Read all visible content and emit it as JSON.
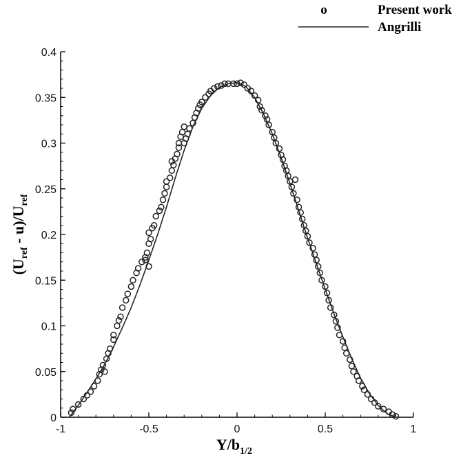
{
  "chart_data": {
    "type": "scatter",
    "x_axis": {
      "label": "Y/b",
      "label_sub": "1/2",
      "range": [
        -1,
        1
      ],
      "ticks": [
        -1,
        -0.5,
        0,
        0.5,
        1
      ],
      "tick_labels": [
        "-1",
        "-0.5",
        "0",
        "0.5",
        "1"
      ]
    },
    "y_axis": {
      "label_parts": [
        "(U",
        "ref",
        " - u)/U",
        "ref"
      ],
      "range": [
        0,
        0.4
      ],
      "ticks": [
        0,
        0.05,
        0.1,
        0.15,
        0.2,
        0.25,
        0.3,
        0.35,
        0.4
      ],
      "tick_labels": [
        "0",
        "0.05",
        "0.1",
        "0.15",
        "0.2",
        "0.25",
        "0.3",
        "0.35",
        "0.4"
      ]
    },
    "grid": false,
    "legend": {
      "position": "top-right",
      "entries": [
        {
          "label": "Present work",
          "symbol": "o",
          "style": "markers"
        },
        {
          "label": "Angrilli",
          "style": "line"
        }
      ]
    },
    "series": [
      {
        "name": "Present work",
        "style": "markers",
        "points": [
          [
            -0.94,
            0.005
          ],
          [
            -0.93,
            0.009
          ],
          [
            -0.9,
            0.014
          ],
          [
            -0.87,
            0.02
          ],
          [
            -0.85,
            0.024
          ],
          [
            -0.83,
            0.028
          ],
          [
            -0.81,
            0.034
          ],
          [
            -0.79,
            0.04
          ],
          [
            -0.78,
            0.047
          ],
          [
            -0.77,
            0.052
          ],
          [
            -0.76,
            0.057
          ],
          [
            -0.75,
            0.05
          ],
          [
            -0.74,
            0.064
          ],
          [
            -0.73,
            0.07
          ],
          [
            -0.72,
            0.075
          ],
          [
            -0.7,
            0.085
          ],
          [
            -0.7,
            0.09
          ],
          [
            -0.68,
            0.1
          ],
          [
            -0.67,
            0.106
          ],
          [
            -0.66,
            0.11
          ],
          [
            -0.65,
            0.12
          ],
          [
            -0.63,
            0.128
          ],
          [
            -0.62,
            0.135
          ],
          [
            -0.6,
            0.143
          ],
          [
            -0.59,
            0.15
          ],
          [
            -0.57,
            0.158
          ],
          [
            -0.56,
            0.163
          ],
          [
            -0.54,
            0.17
          ],
          [
            -0.52,
            0.172
          ],
          [
            -0.51,
            0.18
          ],
          [
            -0.5,
            0.19
          ],
          [
            -0.49,
            0.195
          ],
          [
            -0.5,
            0.202
          ],
          [
            -0.48,
            0.207
          ],
          [
            -0.47,
            0.21
          ],
          [
            -0.5,
            0.165
          ],
          [
            -0.52,
            0.175
          ],
          [
            -0.46,
            0.22
          ],
          [
            -0.44,
            0.226
          ],
          [
            -0.43,
            0.23
          ],
          [
            -0.42,
            0.238
          ],
          [
            -0.41,
            0.245
          ],
          [
            -0.4,
            0.252
          ],
          [
            -0.4,
            0.258
          ],
          [
            -0.38,
            0.262
          ],
          [
            -0.37,
            0.27
          ],
          [
            -0.36,
            0.276
          ],
          [
            -0.35,
            0.283
          ],
          [
            -0.37,
            0.28
          ],
          [
            -0.34,
            0.288
          ],
          [
            -0.33,
            0.295
          ],
          [
            -0.33,
            0.3
          ],
          [
            -0.32,
            0.307
          ],
          [
            -0.31,
            0.312
          ],
          [
            -0.3,
            0.318
          ],
          [
            -0.3,
            0.3
          ],
          [
            -0.29,
            0.305
          ],
          [
            -0.28,
            0.31
          ],
          [
            -0.27,
            0.316
          ],
          [
            -0.25,
            0.322
          ],
          [
            -0.24,
            0.328
          ],
          [
            -0.23,
            0.333
          ],
          [
            -0.22,
            0.338
          ],
          [
            -0.21,
            0.342
          ],
          [
            -0.2,
            0.345
          ],
          [
            -0.18,
            0.35
          ],
          [
            -0.16,
            0.354
          ],
          [
            -0.15,
            0.357
          ],
          [
            -0.13,
            0.36
          ],
          [
            -0.11,
            0.362
          ],
          [
            -0.09,
            0.363
          ],
          [
            -0.07,
            0.365
          ],
          [
            -0.05,
            0.365
          ],
          [
            -0.02,
            0.365
          ],
          [
            0.0,
            0.365
          ],
          [
            0.02,
            0.366
          ],
          [
            0.04,
            0.364
          ],
          [
            0.06,
            0.36
          ],
          [
            0.08,
            0.357
          ],
          [
            0.1,
            0.352
          ],
          [
            0.12,
            0.347
          ],
          [
            0.13,
            0.34
          ],
          [
            0.14,
            0.336
          ],
          [
            0.16,
            0.33
          ],
          [
            0.17,
            0.326
          ],
          [
            0.18,
            0.32
          ],
          [
            0.2,
            0.312
          ],
          [
            0.21,
            0.306
          ],
          [
            0.22,
            0.3
          ],
          [
            0.24,
            0.294
          ],
          [
            0.25,
            0.287
          ],
          [
            0.26,
            0.282
          ],
          [
            0.27,
            0.275
          ],
          [
            0.28,
            0.27
          ],
          [
            0.29,
            0.264
          ],
          [
            0.3,
            0.258
          ],
          [
            0.31,
            0.252
          ],
          [
            0.33,
            0.26
          ],
          [
            0.32,
            0.245
          ],
          [
            0.34,
            0.238
          ],
          [
            0.35,
            0.23
          ],
          [
            0.36,
            0.224
          ],
          [
            0.37,
            0.217
          ],
          [
            0.38,
            0.21
          ],
          [
            0.39,
            0.204
          ],
          [
            0.4,
            0.198
          ],
          [
            0.41,
            0.191
          ],
          [
            0.43,
            0.185
          ],
          [
            0.44,
            0.178
          ],
          [
            0.45,
            0.172
          ],
          [
            0.46,
            0.165
          ],
          [
            0.47,
            0.158
          ],
          [
            0.48,
            0.15
          ],
          [
            0.5,
            0.143
          ],
          [
            0.51,
            0.136
          ],
          [
            0.52,
            0.128
          ],
          [
            0.53,
            0.12
          ],
          [
            0.55,
            0.112
          ],
          [
            0.56,
            0.105
          ],
          [
            0.57,
            0.098
          ],
          [
            0.58,
            0.09
          ],
          [
            0.6,
            0.083
          ],
          [
            0.61,
            0.076
          ],
          [
            0.62,
            0.07
          ],
          [
            0.64,
            0.063
          ],
          [
            0.65,
            0.056
          ],
          [
            0.66,
            0.05
          ],
          [
            0.68,
            0.045
          ],
          [
            0.69,
            0.04
          ],
          [
            0.71,
            0.034
          ],
          [
            0.72,
            0.03
          ],
          [
            0.74,
            0.025
          ],
          [
            0.76,
            0.02
          ],
          [
            0.78,
            0.016
          ],
          [
            0.8,
            0.012
          ],
          [
            0.83,
            0.009
          ],
          [
            0.86,
            0.006
          ],
          [
            0.88,
            0.003
          ],
          [
            0.9,
            0.001
          ]
        ]
      },
      {
        "name": "Angrilli",
        "style": "line",
        "points": [
          [
            -0.95,
            0.0
          ],
          [
            -0.9,
            0.013
          ],
          [
            -0.85,
            0.027
          ],
          [
            -0.8,
            0.042
          ],
          [
            -0.75,
            0.058
          ],
          [
            -0.7,
            0.077
          ],
          [
            -0.65,
            0.098
          ],
          [
            -0.6,
            0.12
          ],
          [
            -0.55,
            0.145
          ],
          [
            -0.5,
            0.172
          ],
          [
            -0.45,
            0.2
          ],
          [
            -0.4,
            0.23
          ],
          [
            -0.35,
            0.262
          ],
          [
            -0.3,
            0.292
          ],
          [
            -0.25,
            0.318
          ],
          [
            -0.2,
            0.338
          ],
          [
            -0.15,
            0.352
          ],
          [
            -0.1,
            0.361
          ],
          [
            -0.05,
            0.365
          ],
          [
            0.0,
            0.366
          ],
          [
            0.05,
            0.362
          ],
          [
            0.1,
            0.35
          ],
          [
            0.15,
            0.332
          ],
          [
            0.2,
            0.31
          ],
          [
            0.25,
            0.284
          ],
          [
            0.3,
            0.256
          ],
          [
            0.35,
            0.226
          ],
          [
            0.4,
            0.196
          ],
          [
            0.45,
            0.168
          ],
          [
            0.5,
            0.14
          ],
          [
            0.55,
            0.113
          ],
          [
            0.6,
            0.088
          ],
          [
            0.65,
            0.064
          ],
          [
            0.7,
            0.043
          ],
          [
            0.75,
            0.026
          ],
          [
            0.8,
            0.013
          ],
          [
            0.85,
            0.004
          ],
          [
            0.9,
            0.0
          ]
        ]
      }
    ]
  }
}
